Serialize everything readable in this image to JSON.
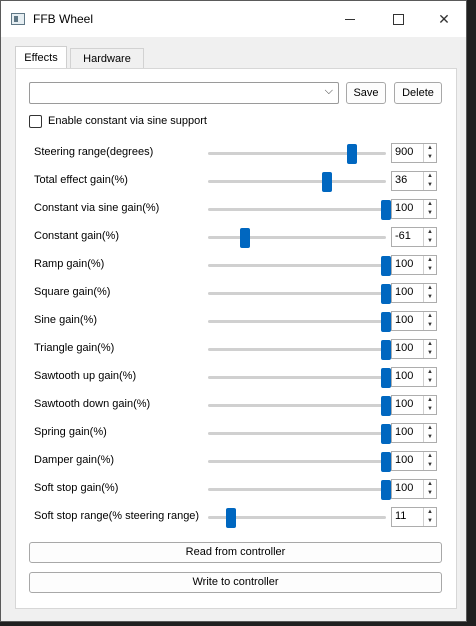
{
  "window": {
    "title": "FFB Wheel"
  },
  "tabs": [
    {
      "label": "Effects"
    },
    {
      "label": "Hardware"
    }
  ],
  "toolbar": {
    "preset_value": "",
    "save_label": "Save",
    "delete_label": "Delete"
  },
  "checkbox": {
    "label": "Enable constant via sine support",
    "checked": false
  },
  "rows": [
    {
      "label": "Steering range(degrees)",
      "value": "900",
      "slider_fraction": 0.81
    },
    {
      "label": "Total effect gain(%)",
      "value": "36",
      "slider_fraction": 0.67
    },
    {
      "label": "Constant via sine gain(%)",
      "value": "100",
      "slider_fraction": 1.0
    },
    {
      "label": "Constant gain(%)",
      "value": "-61",
      "slider_fraction": 0.21
    },
    {
      "label": "Ramp gain(%)",
      "value": "100",
      "slider_fraction": 1.0
    },
    {
      "label": "Square gain(%)",
      "value": "100",
      "slider_fraction": 1.0
    },
    {
      "label": "Sine gain(%)",
      "value": "100",
      "slider_fraction": 1.0
    },
    {
      "label": "Triangle gain(%)",
      "value": "100",
      "slider_fraction": 1.0
    },
    {
      "label": "Sawtooth up gain(%)",
      "value": "100",
      "slider_fraction": 1.0
    },
    {
      "label": "Sawtooth down gain(%)",
      "value": "100",
      "slider_fraction": 1.0
    },
    {
      "label": "Spring gain(%)",
      "value": "100",
      "slider_fraction": 1.0
    },
    {
      "label": "Damper gain(%)",
      "value": "100",
      "slider_fraction": 1.0
    },
    {
      "label": "Soft stop gain(%)",
      "value": "100",
      "slider_fraction": 1.0
    },
    {
      "label": "Soft stop range(% steering range)",
      "value": "11",
      "slider_fraction": 0.13
    }
  ],
  "actions": {
    "read_label": "Read from controller",
    "write_label": "Write to controller"
  },
  "colors": {
    "accent": "#0067c0",
    "window_bg": "#f0f0f0",
    "backdrop": "#202020"
  },
  "icons": {
    "minimize": "minimize-icon",
    "maximize": "maximize-icon",
    "close": "close-icon",
    "dropdown": "chevron-down-icon",
    "spin_up": "spin-up-icon",
    "spin_down": "spin-down-icon"
  }
}
